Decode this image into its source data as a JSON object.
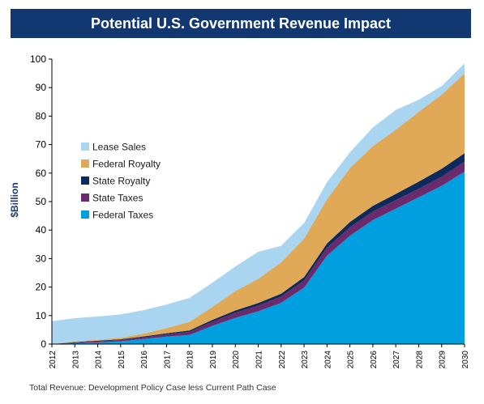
{
  "header": {
    "title": "Potential U.S. Government Revenue Impact"
  },
  "footnote": "Total Revenue: Development Policy Case less Current Path Case",
  "chart_data": {
    "type": "area",
    "stacked": true,
    "title": "Potential U.S. Government Revenue Impact",
    "xlabel": "",
    "ylabel": "$Billion",
    "xlim": [
      2012,
      2030
    ],
    "ylim": [
      0,
      100
    ],
    "yticks": [
      0,
      10,
      20,
      30,
      40,
      50,
      60,
      70,
      80,
      90,
      100
    ],
    "grid": false,
    "legend_position": "left",
    "x": [
      "2012",
      "2013",
      "2014",
      "2015",
      "2016",
      "2017",
      "2018",
      "2019",
      "2020",
      "2021",
      "2022",
      "2023",
      "2024",
      "2025",
      "2026",
      "2027",
      "2028",
      "2029",
      "2030"
    ],
    "series": [
      {
        "name": "Federal Taxes",
        "color": "#00a0e0",
        "values": [
          0,
          0.3,
          0.6,
          1.0,
          1.8,
          2.6,
          3.2,
          6.4,
          9.2,
          11.5,
          14.5,
          19.8,
          31.0,
          38.0,
          43.5,
          47.5,
          51.5,
          55.5,
          60.5
        ]
      },
      {
        "name": "State Taxes",
        "color": "#6b2a6b",
        "values": [
          0,
          0.3,
          0.4,
          0.5,
          0.6,
          0.8,
          1.1,
          1.4,
          1.8,
          2.0,
          2.2,
          2.5,
          2.8,
          3.0,
          3.0,
          3.0,
          3.0,
          3.2,
          3.5
        ]
      },
      {
        "name": "State Royalty",
        "color": "#0d2a5e",
        "values": [
          0,
          0.1,
          0.2,
          0.2,
          0.3,
          0.4,
          0.5,
          0.7,
          0.8,
          0.9,
          1.0,
          1.2,
          1.5,
          1.8,
          2.0,
          2.2,
          2.5,
          2.8,
          3.0
        ]
      },
      {
        "name": "Federal Royalty",
        "color": "#e0a958",
        "values": [
          0,
          0.2,
          0.3,
          0.5,
          1.0,
          1.8,
          3.0,
          4.5,
          6.8,
          8.5,
          11.0,
          13.5,
          15.5,
          19.0,
          21.0,
          22.5,
          24.5,
          26.0,
          28.0
        ]
      },
      {
        "name": "Lease Sales",
        "color": "#a9d5f0",
        "values": [
          8,
          8.2,
          8.2,
          8.2,
          8.2,
          8.3,
          8.4,
          8.5,
          8.6,
          9.5,
          5.8,
          5.5,
          6.0,
          5.5,
          6.5,
          7.0,
          4.2,
          3.0,
          3.5
        ]
      }
    ],
    "legend": [
      {
        "name": "Lease Sales",
        "color": "#a9d5f0"
      },
      {
        "name": "Federal Royalty",
        "color": "#e0a958"
      },
      {
        "name": "State Royalty",
        "color": "#0d2a5e"
      },
      {
        "name": "State Taxes",
        "color": "#6b2a6b"
      },
      {
        "name": "Federal Taxes",
        "color": "#00a0e0"
      }
    ]
  }
}
